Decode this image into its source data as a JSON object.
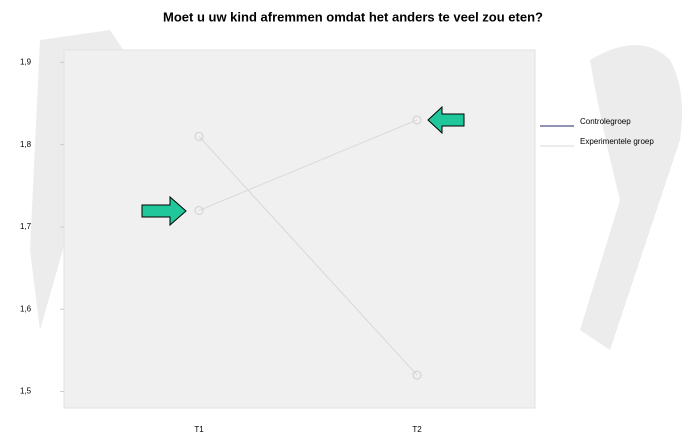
{
  "chart_data": {
    "type": "line",
    "title": "Moet u uw kind afremmen omdat het anders te veel zou eten?",
    "categories": [
      "T1",
      "T2"
    ],
    "series": [
      {
        "name": "Controlegroep",
        "color": "#1f2a6b",
        "values": [
          1.81,
          1.52
        ]
      },
      {
        "name": "Experimentele groep",
        "color": "#d9d9d9",
        "values": [
          1.72,
          1.83
        ]
      }
    ],
    "ylim": [
      1.48,
      1.915
    ],
    "yticks": [
      {
        "value": 1.5,
        "label": "1,5"
      },
      {
        "value": 1.6,
        "label": "1,6"
      },
      {
        "value": 1.7,
        "label": "1,7"
      },
      {
        "value": 1.8,
        "label": "1,8"
      },
      {
        "value": 1.9,
        "label": "1,9"
      }
    ],
    "grid": false,
    "legend": "right"
  }
}
